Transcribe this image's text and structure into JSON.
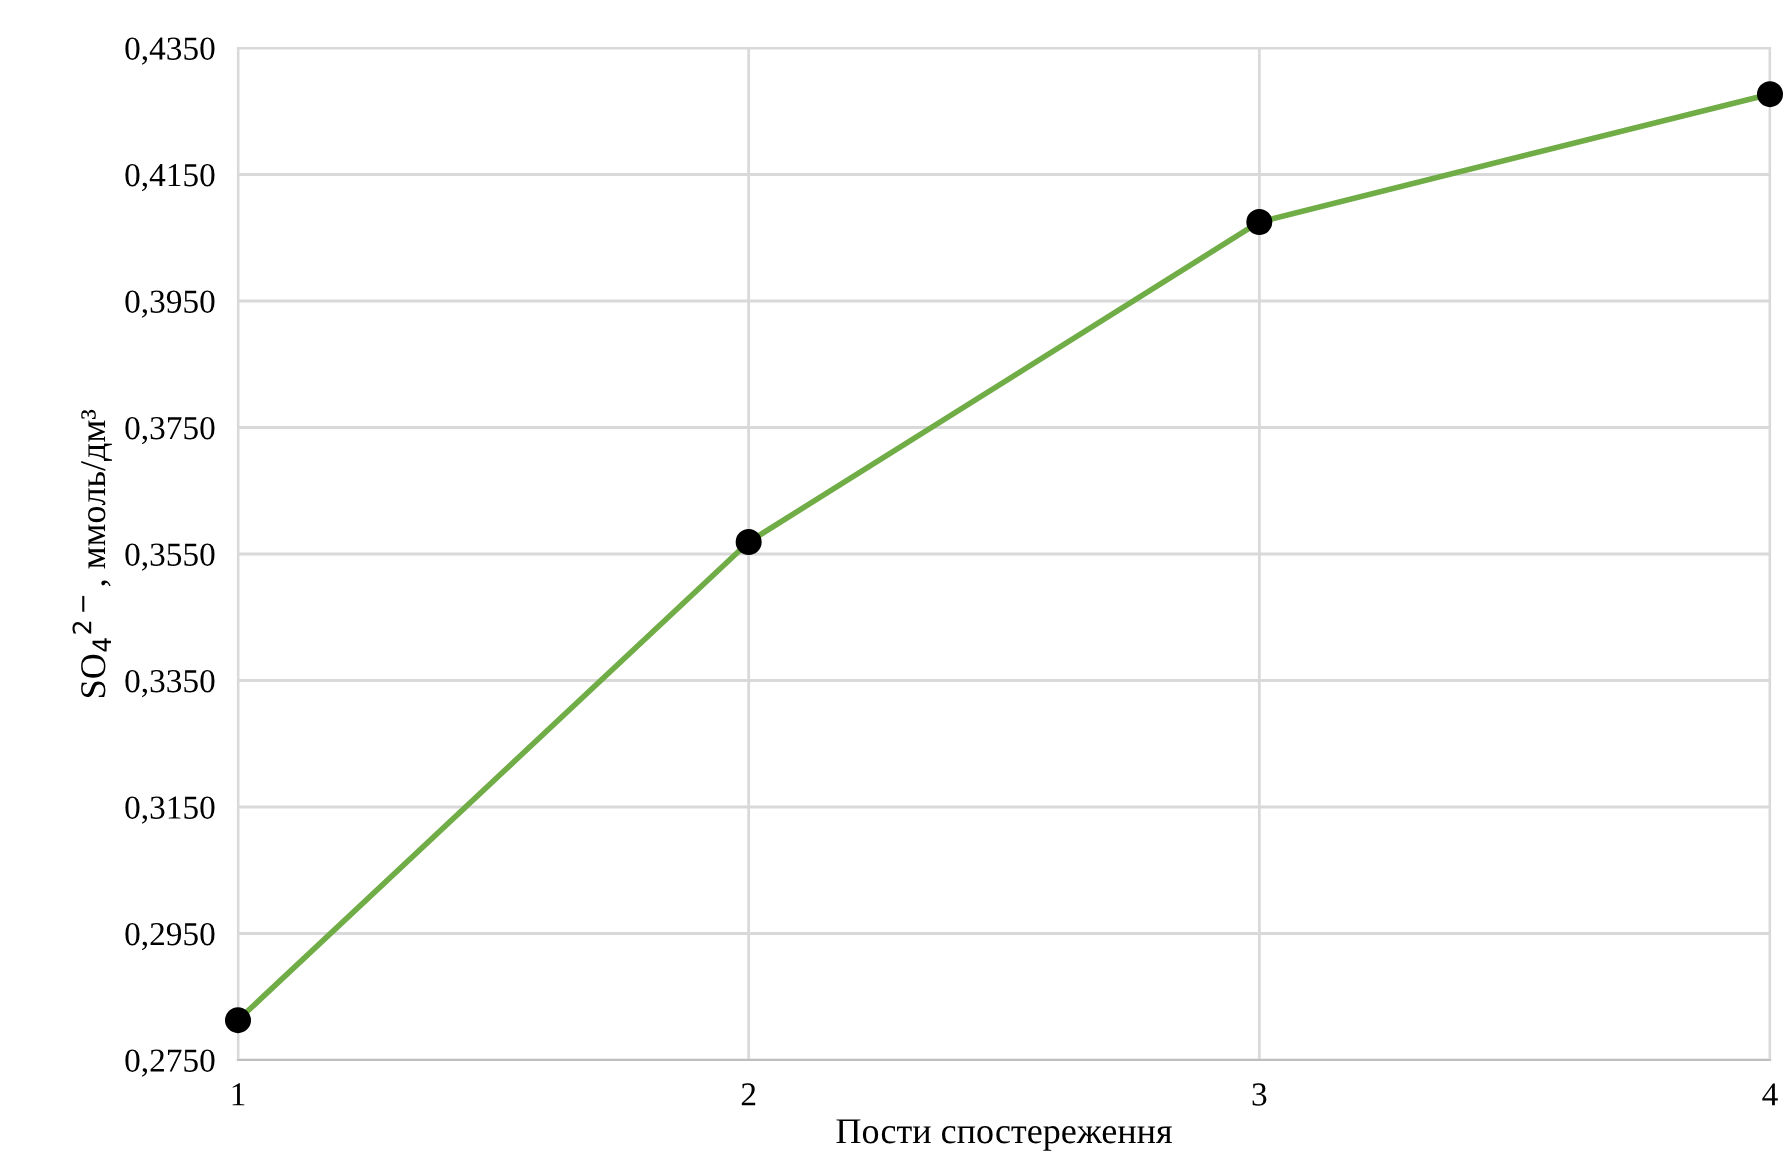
{
  "chart_data": {
    "type": "line",
    "xlabel": "Пости спостереження",
    "ylabel": "SO$_{4}$$^{2−}$, ммоль/дм³",
    "x": [
      1,
      2,
      3,
      4
    ],
    "series": [
      {
        "color": "#70ad47",
        "colors": [
          "#000000",
          "#000000",
          "#000000",
          "#000000"
        ],
        "values": [
          0.2813,
          0.3569,
          0.4075,
          0.4277
        ]
      }
    ],
    "xlim": [
      1,
      4
    ],
    "xticks": [
      1,
      2,
      3,
      4
    ],
    "ylim": [
      0.275,
      0.435
    ],
    "yticks": [
      {
        "value": 0.275,
        "label": "0,2750"
      },
      {
        "value": 0.295,
        "label": "0,2950"
      },
      {
        "value": 0.315,
        "label": "0,3150"
      },
      {
        "value": 0.335,
        "label": "0,3350"
      },
      {
        "value": 0.355,
        "label": "0,3550"
      },
      {
        "value": 0.375,
        "label": "0,3750"
      },
      {
        "value": 0.395,
        "label": "0,3950"
      },
      {
        "value": 0.415,
        "label": "0,4150"
      },
      {
        "value": 0.435,
        "label": "0,4350"
      }
    ],
    "grid": true,
    "marker": "circle",
    "line_style": "solid"
  }
}
